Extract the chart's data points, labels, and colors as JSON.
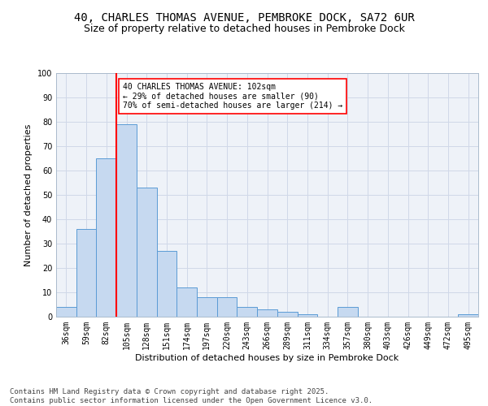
{
  "title1": "40, CHARLES THOMAS AVENUE, PEMBROKE DOCK, SA72 6UR",
  "title2": "Size of property relative to detached houses in Pembroke Dock",
  "xlabel": "Distribution of detached houses by size in Pembroke Dock",
  "ylabel": "Number of detached properties",
  "categories": [
    "36sqm",
    "59sqm",
    "82sqm",
    "105sqm",
    "128sqm",
    "151sqm",
    "174sqm",
    "197sqm",
    "220sqm",
    "243sqm",
    "266sqm",
    "289sqm",
    "311sqm",
    "334sqm",
    "357sqm",
    "380sqm",
    "403sqm",
    "426sqm",
    "449sqm",
    "472sqm",
    "495sqm"
  ],
  "values": [
    4,
    36,
    65,
    79,
    53,
    27,
    12,
    8,
    8,
    4,
    3,
    2,
    1,
    0,
    4,
    0,
    0,
    0,
    0,
    0,
    1
  ],
  "bar_color": "#c6d9f0",
  "bar_edge_color": "#5b9bd5",
  "vline_x_index": 3,
  "vline_color": "#ff0000",
  "annotation_text": "40 CHARLES THOMAS AVENUE: 102sqm\n← 29% of detached houses are smaller (90)\n70% of semi-detached houses are larger (214) →",
  "annotation_box_color": "#ffffff",
  "annotation_box_edge": "#ff0000",
  "ylim": [
    0,
    100
  ],
  "yticks": [
    0,
    10,
    20,
    30,
    40,
    50,
    60,
    70,
    80,
    90,
    100
  ],
  "grid_color": "#d0d8e8",
  "bg_color": "#eef2f8",
  "footer": "Contains HM Land Registry data © Crown copyright and database right 2025.\nContains public sector information licensed under the Open Government Licence v3.0.",
  "title_fontsize": 10,
  "subtitle_fontsize": 9,
  "axis_label_fontsize": 8,
  "tick_fontsize": 7,
  "footer_fontsize": 6.5,
  "annot_fontsize": 7
}
